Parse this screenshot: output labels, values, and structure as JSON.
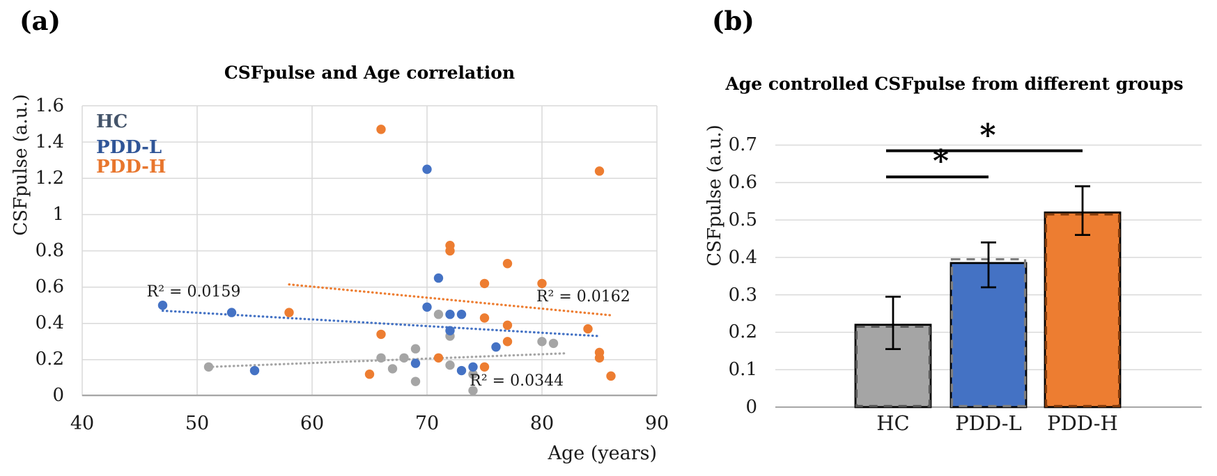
{
  "figure": {
    "background": "#FFFFFF"
  },
  "colors": {
    "grid": "#D9D9D9",
    "axis": "#A6A6A6",
    "text": "#1A1A1A",
    "hc": "#A5A5A5",
    "pdd_l": "#4472C4",
    "pdd_h": "#ED7D31",
    "bar_outline": "#000000"
  },
  "legend": {
    "items": [
      {
        "label": "HC",
        "color": "#44546A"
      },
      {
        "label": "PDD-L",
        "color": "#2F5597"
      },
      {
        "label": "PDD-H",
        "color": "#E8762D"
      }
    ]
  },
  "chart_data": [
    {
      "type": "scatter",
      "panel_label": "(a)",
      "title": "CSFpulse and Age correlation",
      "xlabel": "Age (years)",
      "ylabel": "CSFpulse (a.u.)",
      "xlim": [
        40,
        90
      ],
      "ylim": [
        0,
        1.6
      ],
      "x_ticks": [
        40,
        50,
        60,
        70,
        80,
        90
      ],
      "x_tick_labels": [
        "40",
        "50",
        "60",
        "70",
        "80",
        "90"
      ],
      "y_ticks": [
        1.6,
        1.4,
        1.2,
        1.0,
        0.8,
        0.6,
        0.4,
        0.2,
        0
      ],
      "y_tick_labels": [
        "1.6",
        "1.4",
        "1.2",
        "1",
        "0.8",
        "0.6",
        "0.4",
        "0.2",
        "0"
      ],
      "grid": true,
      "legend_position": "inside-top-left",
      "series": [
        {
          "name": "HC",
          "color": "#A5A5A5",
          "points": [
            [
              51,
              0.16
            ],
            [
              66,
              0.21
            ],
            [
              67,
              0.15
            ],
            [
              68,
              0.21
            ],
            [
              69,
              0.26
            ],
            [
              69,
              0.08
            ],
            [
              71,
              0.45
            ],
            [
              72,
              0.33
            ],
            [
              72,
              0.17
            ],
            [
              74,
              0.12
            ],
            [
              74,
              0.03
            ],
            [
              80,
              0.3
            ],
            [
              81,
              0.29
            ]
          ],
          "trendline": {
            "x1": 51,
            "y1": 0.16,
            "x2": 82,
            "y2": 0.235
          },
          "r2_text": "R² = 0.0344"
        },
        {
          "name": "PDD-L",
          "color": "#4472C4",
          "points": [
            [
              47,
              0.5
            ],
            [
              53,
              0.46
            ],
            [
              55,
              0.14
            ],
            [
              69,
              0.18
            ],
            [
              70,
              1.25
            ],
            [
              70,
              0.49
            ],
            [
              71,
              0.65
            ],
            [
              72,
              0.45
            ],
            [
              72,
              0.36
            ],
            [
              73,
              0.45
            ],
            [
              73,
              0.14
            ],
            [
              74,
              0.16
            ],
            [
              76,
              0.27
            ]
          ],
          "trendline": {
            "x1": 47,
            "y1": 0.47,
            "x2": 85,
            "y2": 0.33
          },
          "r2_text": "R² = 0.0159"
        },
        {
          "name": "PDD-H",
          "color": "#ED7D31",
          "points": [
            [
              58,
              0.46
            ],
            [
              65,
              0.12
            ],
            [
              66,
              1.47
            ],
            [
              66,
              0.34
            ],
            [
              71,
              0.21
            ],
            [
              72,
              0.83
            ],
            [
              72,
              0.8
            ],
            [
              75,
              0.62
            ],
            [
              75,
              0.43
            ],
            [
              75,
              0.16
            ],
            [
              77,
              0.73
            ],
            [
              77,
              0.39
            ],
            [
              77,
              0.3
            ],
            [
              80,
              0.62
            ],
            [
              84,
              0.37
            ],
            [
              85,
              1.24
            ],
            [
              85,
              0.24
            ],
            [
              85,
              0.21
            ],
            [
              86,
              0.11
            ]
          ],
          "trendline": {
            "x1": 58,
            "y1": 0.615,
            "x2": 86,
            "y2": 0.445
          },
          "r2_text": "R² = 0.0162"
        }
      ],
      "annotations": [
        {
          "text": "R² = 0.0159",
          "x": 49.7,
          "y": 0.57,
          "series": "PDD-L"
        },
        {
          "text": "R² = 0.0162",
          "x": 83.6,
          "y": 0.545,
          "series": "PDD-H"
        },
        {
          "text": "R² = 0.0344",
          "x": 77.8,
          "y": 0.08,
          "series": "HC"
        }
      ]
    },
    {
      "type": "bar",
      "panel_label": "(b)",
      "title": "Age controlled CSFpulse from different groups",
      "ylabel": "CSFpulse (a.u.)",
      "ylim": [
        0,
        0.7
      ],
      "y_ticks": [
        0.7,
        0.6,
        0.5,
        0.4,
        0.3,
        0.2,
        0.1,
        0
      ],
      "y_tick_labels": [
        "0.7",
        "0.6",
        "0.5",
        "0.4",
        "0.3",
        "0.2",
        "0.1",
        "0"
      ],
      "categories": [
        "HC",
        "PDD-L",
        "PDD-H"
      ],
      "values": [
        0.22,
        0.385,
        0.52
      ],
      "bar_colors": [
        "#A5A5A5",
        "#4472C4",
        "#ED7D31"
      ],
      "error_bars": [
        {
          "low": 0.155,
          "high": 0.295
        },
        {
          "low": 0.32,
          "high": 0.44
        },
        {
          "low": 0.46,
          "high": 0.59
        }
      ],
      "dashed_overlay": {
        "values": [
          0.215,
          0.395,
          0.515
        ],
        "colors": [
          "#595959",
          "#7F7F7F",
          "#843C0C"
        ]
      },
      "significance": [
        {
          "from": 0,
          "to": 1,
          "y": 0.615,
          "label": "*"
        },
        {
          "from": 0,
          "to": 2,
          "y": 0.685,
          "label": "*"
        }
      ],
      "grid": true
    }
  ]
}
